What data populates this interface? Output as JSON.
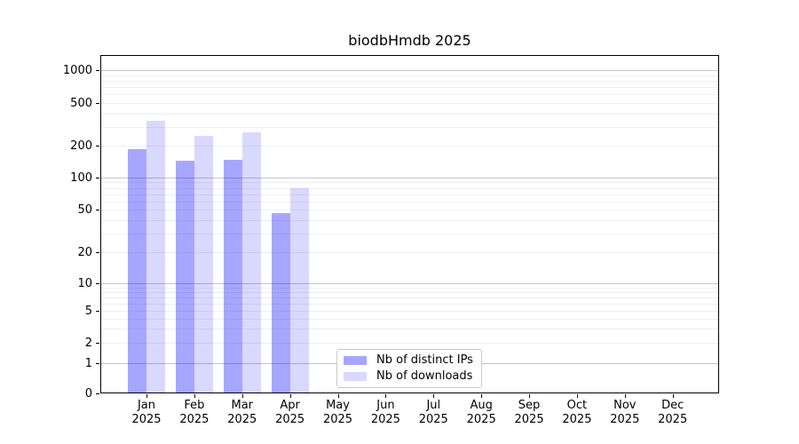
{
  "chart_data": {
    "type": "bar",
    "title": "biodbHmdb 2025",
    "year_label": "2025",
    "categories": [
      "Jan",
      "Feb",
      "Mar",
      "Apr",
      "May",
      "Jun",
      "Jul",
      "Aug",
      "Sep",
      "Oct",
      "Nov",
      "Dec"
    ],
    "series": [
      {
        "name": "Nb of distinct IPs",
        "color": "rgba(0,0,255,0.35)",
        "legend_color": "#a6a6ff",
        "values": [
          185,
          145,
          148,
          46,
          0,
          0,
          0,
          0,
          0,
          0,
          0,
          0
        ]
      },
      {
        "name": "Nb of downloads",
        "color": "rgba(0,0,255,0.15)",
        "legend_color": "#d9d9ff",
        "values": [
          340,
          245,
          265,
          80,
          0,
          0,
          0,
          0,
          0,
          0,
          0,
          0
        ]
      }
    ],
    "y_ticks": [
      0,
      1,
      2,
      5,
      10,
      20,
      50,
      100,
      200,
      500,
      1000
    ],
    "y_scale": "log-like (0 baseline)",
    "ylim_top_approx": 1400,
    "grid": true,
    "legend_position": "inside bottom-center",
    "colors": {
      "grid_major": "#c6c6c6",
      "grid_minor": "#efefef",
      "axis": "#000000",
      "background": "#ffffff"
    }
  }
}
